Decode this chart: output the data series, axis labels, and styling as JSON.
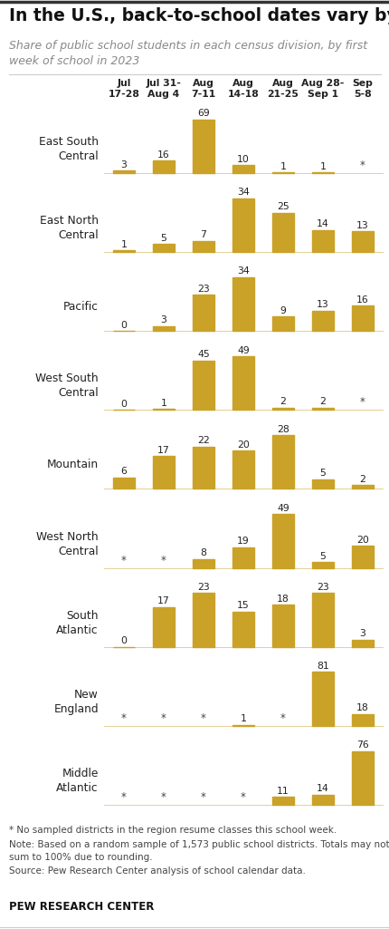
{
  "title": "In the U.S., back-to-school dates vary by region",
  "subtitle": "Share of public school students in each census division, by first\nweek of school in 2023",
  "col_labels": [
    "Jul\n17-28",
    "Jul 31-\nAug 4",
    "Aug\n7-11",
    "Aug\n14-18",
    "Aug\n21-25",
    "Aug 28-\nSep 1",
    "Sep\n5-8"
  ],
  "regions": [
    "East South\nCentral",
    "East North\nCentral",
    "Pacific",
    "West South\nCentral",
    "Mountain",
    "West North\nCentral",
    "South\nAtlantic",
    "New\nEngland",
    "Middle\nAtlantic"
  ],
  "values": [
    [
      3,
      16,
      69,
      10,
      1,
      1,
      null
    ],
    [
      1,
      5,
      7,
      34,
      25,
      14,
      13
    ],
    [
      0,
      3,
      23,
      34,
      9,
      13,
      16
    ],
    [
      0,
      1,
      45,
      49,
      2,
      2,
      null
    ],
    [
      6,
      17,
      22,
      20,
      28,
      5,
      2
    ],
    [
      null,
      null,
      8,
      19,
      49,
      5,
      20
    ],
    [
      0,
      17,
      23,
      15,
      18,
      23,
      3
    ],
    [
      null,
      null,
      null,
      1,
      null,
      81,
      18
    ],
    [
      null,
      null,
      null,
      null,
      11,
      14,
      76
    ]
  ],
  "bar_color": "#C9A227",
  "background_color": "#FFFFFF",
  "footnote1": "* No sampled districts in the region resume classes this school week.",
  "footnote2": "Note: Based on a random sample of 1,573 public school districts. Totals may not\nsum to 100% due to rounding.",
  "footnote3": "Source: Pew Research Center analysis of school calendar data.",
  "credit": "PEW RESEARCH CENTER",
  "title_fontsize": 13.5,
  "subtitle_fontsize": 9,
  "col_label_fontsize": 7.8,
  "val_fontsize": 7.8,
  "region_fontsize": 8.8,
  "fn_fontsize": 7.5,
  "credit_fontsize": 8.5
}
